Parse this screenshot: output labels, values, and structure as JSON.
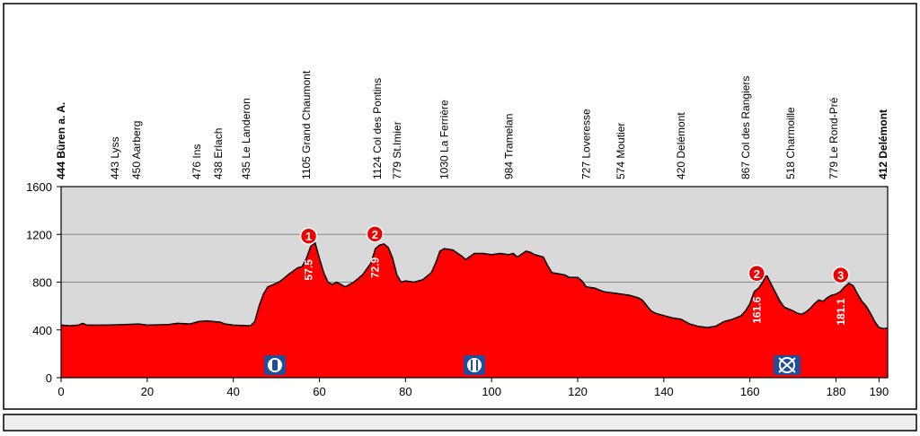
{
  "chart_data": {
    "type": "area",
    "color": "#ff0000",
    "background": "#d9d9d9",
    "grid": true,
    "xlim": [
      0,
      192
    ],
    "ylim": [
      0,
      1600
    ],
    "xticks": [
      0,
      20,
      40,
      60,
      80,
      100,
      120,
      140,
      160,
      180,
      190
    ],
    "yticks": [
      0,
      400,
      800,
      1200,
      1600
    ],
    "x": [
      0,
      2,
      4,
      5,
      6,
      10,
      15,
      18,
      20,
      25,
      27,
      30,
      32,
      34,
      37,
      38,
      40,
      44,
      45,
      46,
      47,
      48,
      50,
      51,
      53,
      55,
      56,
      57,
      58,
      59,
      60,
      61,
      62,
      63,
      64,
      66,
      68,
      70,
      72,
      73,
      74,
      75,
      76,
      77,
      78,
      79,
      80,
      82,
      84,
      86,
      87,
      88,
      89,
      91,
      93,
      94,
      96,
      98,
      100,
      102,
      104,
      105,
      106,
      108,
      109,
      110,
      112,
      113,
      114,
      117,
      118,
      120,
      121,
      122,
      124,
      126,
      130,
      132,
      134,
      135,
      137,
      138,
      140,
      142,
      144,
      146,
      148,
      150,
      152,
      154,
      156,
      158,
      159,
      160,
      161,
      162,
      163,
      163.6,
      164,
      165,
      166,
      167,
      168,
      170,
      171,
      172,
      173,
      174,
      175,
      176,
      177,
      178,
      179,
      180,
      181,
      182,
      183,
      184,
      185,
      186,
      187,
      188,
      189,
      190,
      191,
      192
    ],
    "values": [
      440,
      435,
      440,
      455,
      440,
      440,
      445,
      450,
      440,
      445,
      455,
      450,
      470,
      475,
      465,
      450,
      440,
      435,
      470,
      600,
      700,
      760,
      790,
      810,
      870,
      920,
      930,
      1000,
      1100,
      1130,
      1000,
      880,
      800,
      780,
      800,
      760,
      800,
      860,
      960,
      1080,
      1110,
      1120,
      1090,
      1000,
      860,
      800,
      810,
      800,
      820,
      880,
      960,
      1060,
      1080,
      1070,
      1020,
      990,
      1040,
      1040,
      1030,
      1040,
      1030,
      1040,
      1010,
      1060,
      1050,
      1030,
      1010,
      940,
      880,
      860,
      840,
      840,
      810,
      760,
      750,
      720,
      700,
      690,
      670,
      650,
      560,
      540,
      520,
      500,
      490,
      450,
      430,
      420,
      430,
      470,
      490,
      520,
      560,
      620,
      720,
      750,
      800,
      850,
      850,
      780,
      710,
      640,
      590,
      560,
      540,
      530,
      550,
      580,
      620,
      650,
      640,
      670,
      690,
      700,
      720,
      760,
      790,
      770,
      700,
      640,
      600,
      540,
      470,
      420,
      410,
      415
    ],
    "places": [
      {
        "label": "444 Büren a. A.",
        "x": 0
      },
      {
        "label": "443 Lyss",
        "x": 12.5
      },
      {
        "label": "450 Aarberg",
        "x": 17.5
      },
      {
        "label": "476 Ins",
        "x": 31.5
      },
      {
        "label": "438 Erlach",
        "x": 36.5
      },
      {
        "label": "435 Le Landeron",
        "x": 43
      },
      {
        "label": "1105 Grand Chaumont",
        "x": 57
      },
      {
        "label": "1124 Col des Pontins",
        "x": 73.5
      },
      {
        "label": "779 St.Imier",
        "x": 78
      },
      {
        "label": "1030 La Ferrière",
        "x": 89
      },
      {
        "label": "984 Tramelan",
        "x": 104
      },
      {
        "label": "727 Loveresse",
        "x": 122
      },
      {
        "label": "574 Moutier",
        "x": 130
      },
      {
        "label": "420 Delémont",
        "x": 144
      },
      {
        "label": "867 Col des Rangiers",
        "x": 159
      },
      {
        "label": "518 Charmoille",
        "x": 169.5
      },
      {
        "label": "779 Le Rond-Pré",
        "x": 179.5
      },
      {
        "label": "412 Delémont",
        "x": 191
      }
    ],
    "climbs": [
      {
        "category": 1,
        "x": 57.5
      },
      {
        "category": 2,
        "x": 72.9
      },
      {
        "category": 2,
        "x": 161.6
      },
      {
        "category": 3,
        "x": 181.1
      }
    ]
  }
}
